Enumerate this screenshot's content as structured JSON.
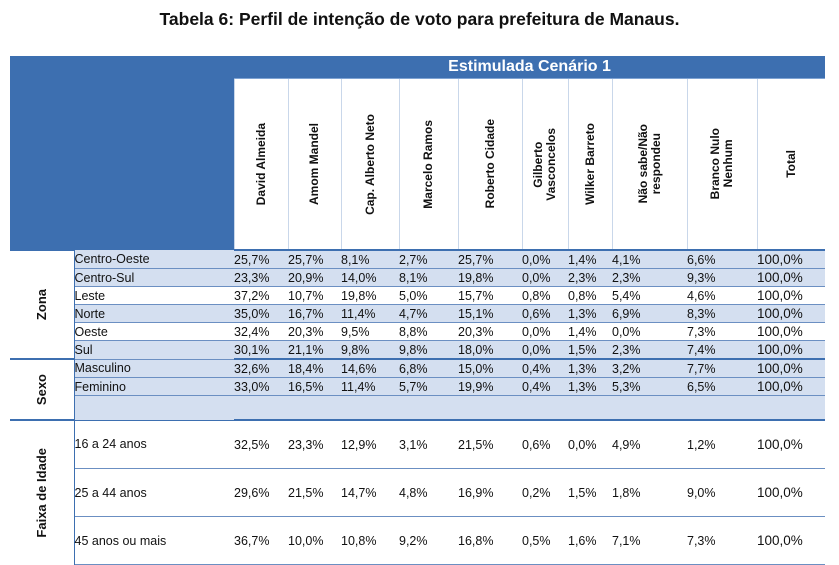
{
  "title": "Tabela 6: Perfil de intenção de voto para prefeitura de Manaus.",
  "scenario": "Estimulada Cenário 1",
  "columns": [
    "David Almeida",
    "Amom Mandel",
    "Cap. Alberto Neto",
    "Marcelo Ramos",
    "Roberto Cidade",
    "Gilberto\nVasconcelos",
    "Wilker Barreto",
    "Não sabe/Não\nrespondeu",
    "Branco Nulo\nNenhum",
    "Total"
  ],
  "groups": [
    {
      "name": "Zona",
      "rows": [
        {
          "label": "Centro-Oeste",
          "values": [
            "25,7%",
            "25,7%",
            "8,1%",
            "2,7%",
            "25,7%",
            "0,0%",
            "1,4%",
            "4,1%",
            "6,6%",
            "100,0%"
          ]
        },
        {
          "label": "Centro-Sul",
          "values": [
            "23,3%",
            "20,9%",
            "14,0%",
            "8,1%",
            "19,8%",
            "0,0%",
            "2,3%",
            "2,3%",
            "9,3%",
            "100,0%"
          ]
        },
        {
          "label": "Leste",
          "values": [
            "37,2%",
            "10,7%",
            "19,8%",
            "5,0%",
            "15,7%",
            "0,8%",
            "0,8%",
            "5,4%",
            "4,6%",
            "100,0%"
          ]
        },
        {
          "label": "Norte",
          "values": [
            "35,0%",
            "16,7%",
            "11,4%",
            "4,7%",
            "15,1%",
            "0,6%",
            "1,3%",
            "6,9%",
            "8,3%",
            "100,0%"
          ]
        },
        {
          "label": "Oeste",
          "values": [
            "32,4%",
            "20,3%",
            "9,5%",
            "8,8%",
            "20,3%",
            "0,0%",
            "1,4%",
            "0,0%",
            "7,3%",
            "100,0%"
          ]
        },
        {
          "label": "Sul",
          "values": [
            "30,1%",
            "21,1%",
            "9,8%",
            "9,8%",
            "18,0%",
            "0,0%",
            "1,5%",
            "2,3%",
            "7,4%",
            "100,0%"
          ]
        }
      ]
    },
    {
      "name": "Sexo",
      "rows": [
        {
          "label": "Masculino",
          "values": [
            "32,6%",
            "18,4%",
            "14,6%",
            "6,8%",
            "15,0%",
            "0,4%",
            "1,3%",
            "3,2%",
            "7,7%",
            "100,0%"
          ]
        },
        {
          "label": "Feminino",
          "values": [
            "33,0%",
            "16,5%",
            "11,4%",
            "5,7%",
            "19,9%",
            "0,4%",
            "1,3%",
            "5,3%",
            "6,5%",
            "100,0%"
          ]
        }
      ]
    },
    {
      "name": "Faixa de Idade",
      "rows": [
        {
          "label": "16 a 24 anos",
          "values": [
            "32,5%",
            "23,3%",
            "12,9%",
            "3,1%",
            "21,5%",
            "0,6%",
            "0,0%",
            "4,9%",
            "1,2%",
            "100,0%"
          ]
        },
        {
          "label": "25 a 44 anos",
          "values": [
            "29,6%",
            "21,5%",
            "14,7%",
            "4,8%",
            "16,9%",
            "0,2%",
            "1,5%",
            "1,8%",
            "9,0%",
            "100,0%"
          ]
        },
        {
          "label": "45 anos ou mais",
          "values": [
            "36,7%",
            "10,0%",
            "10,8%",
            "9,2%",
            "16,8%",
            "0,5%",
            "1,6%",
            "7,1%",
            "7,3%",
            "100,0%"
          ]
        }
      ]
    }
  ]
}
